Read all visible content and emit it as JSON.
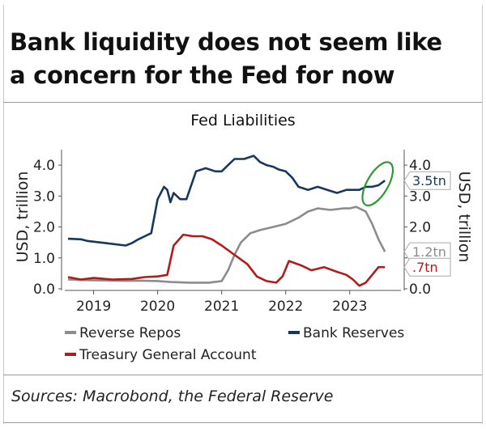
{
  "headline": "Bank liquidity does not seem like a concern for the Fed for now",
  "source": "Sources: Macrobond, the Federal Reserve",
  "chart_data": {
    "type": "line",
    "title": "Fed Liabilities",
    "ylabel_left": "USD, trillion",
    "ylabel_right": "USD, trillion",
    "ylim": [
      0,
      4.5
    ],
    "yticks": [
      0.0,
      1.0,
      2.0,
      3.0,
      4.0
    ],
    "ytick_labels": [
      "0.0",
      "1.0",
      "2.0",
      "3.0",
      "4.0"
    ],
    "xlim": [
      2018.55,
      2023.8
    ],
    "xtick_labels": [
      "2019",
      "2020",
      "2021",
      "2022",
      "2023"
    ],
    "xtick_positions": [
      2019.0,
      2020.0,
      2021.0,
      2022.0,
      2023.0
    ],
    "grid": false,
    "legend_position": "bottom",
    "colors": {
      "Reverse Repos": "#8c8c8c",
      "Bank Reserves": "#17375e",
      "Treasury General Account": "#b01c1c",
      "highlight": "#2e9a2e"
    },
    "series": [
      {
        "name": "Reverse Repos",
        "x": [
          2018.6,
          2018.9,
          2019.2,
          2019.5,
          2019.8,
          2020.0,
          2020.2,
          2020.5,
          2020.8,
          2021.0,
          2021.1,
          2021.2,
          2021.3,
          2021.45,
          2021.6,
          2021.8,
          2022.0,
          2022.2,
          2022.35,
          2022.5,
          2022.7,
          2022.9,
          2023.0,
          2023.1,
          2023.25,
          2023.35,
          2023.45,
          2023.55
        ],
        "y": [
          0.3,
          0.28,
          0.27,
          0.26,
          0.26,
          0.25,
          0.22,
          0.2,
          0.2,
          0.25,
          0.6,
          1.1,
          1.5,
          1.8,
          1.9,
          2.0,
          2.1,
          2.3,
          2.5,
          2.6,
          2.55,
          2.6,
          2.6,
          2.65,
          2.5,
          2.1,
          1.6,
          1.2
        ]
      },
      {
        "name": "Bank Reserves",
        "x": [
          2018.6,
          2018.8,
          2018.9,
          2019.1,
          2019.3,
          2019.5,
          2019.6,
          2019.7,
          2019.8,
          2019.9,
          2020.0,
          2020.1,
          2020.15,
          2020.2,
          2020.25,
          2020.35,
          2020.45,
          2020.6,
          2020.75,
          2020.9,
          2021.0,
          2021.1,
          2021.2,
          2021.35,
          2021.5,
          2021.6,
          2021.7,
          2021.8,
          2021.9,
          2022.0,
          2022.1,
          2022.2,
          2022.35,
          2022.5,
          2022.65,
          2022.8,
          2022.95,
          2023.05,
          2023.15,
          2023.25,
          2023.35,
          2023.45,
          2023.55
        ],
        "y": [
          1.62,
          1.6,
          1.55,
          1.5,
          1.45,
          1.4,
          1.48,
          1.6,
          1.7,
          1.8,
          2.9,
          3.3,
          3.2,
          2.8,
          3.1,
          2.9,
          2.9,
          3.8,
          3.9,
          3.8,
          3.8,
          4.0,
          4.2,
          4.2,
          4.3,
          4.1,
          4.0,
          3.95,
          3.85,
          3.8,
          3.6,
          3.3,
          3.2,
          3.3,
          3.2,
          3.1,
          3.2,
          3.2,
          3.2,
          3.3,
          3.3,
          3.35,
          3.5
        ]
      },
      {
        "name": "Treasury General Account",
        "x": [
          2018.6,
          2018.8,
          2019.0,
          2019.3,
          2019.6,
          2019.8,
          2020.0,
          2020.15,
          2020.25,
          2020.4,
          2020.55,
          2020.7,
          2020.85,
          2021.0,
          2021.2,
          2021.4,
          2021.55,
          2021.7,
          2021.85,
          2021.95,
          2022.05,
          2022.25,
          2022.4,
          2022.6,
          2022.8,
          2022.95,
          2023.05,
          2023.15,
          2023.25,
          2023.35,
          2023.45,
          2023.55
        ],
        "y": [
          0.38,
          0.3,
          0.35,
          0.3,
          0.32,
          0.38,
          0.4,
          0.45,
          1.4,
          1.75,
          1.7,
          1.7,
          1.6,
          1.4,
          1.1,
          0.8,
          0.4,
          0.25,
          0.2,
          0.4,
          0.9,
          0.75,
          0.6,
          0.7,
          0.55,
          0.45,
          0.3,
          0.1,
          0.2,
          0.45,
          0.7,
          0.7
        ]
      }
    ],
    "annotations": [
      {
        "label": "3.5tn",
        "series": "Bank Reserves",
        "value": 3.5
      },
      {
        "label": "1.2tn",
        "series": "Reverse Repos",
        "value": 1.2
      },
      {
        "label": ".7tn",
        "series": "Treasury General Account",
        "value": 0.7
      }
    ]
  }
}
